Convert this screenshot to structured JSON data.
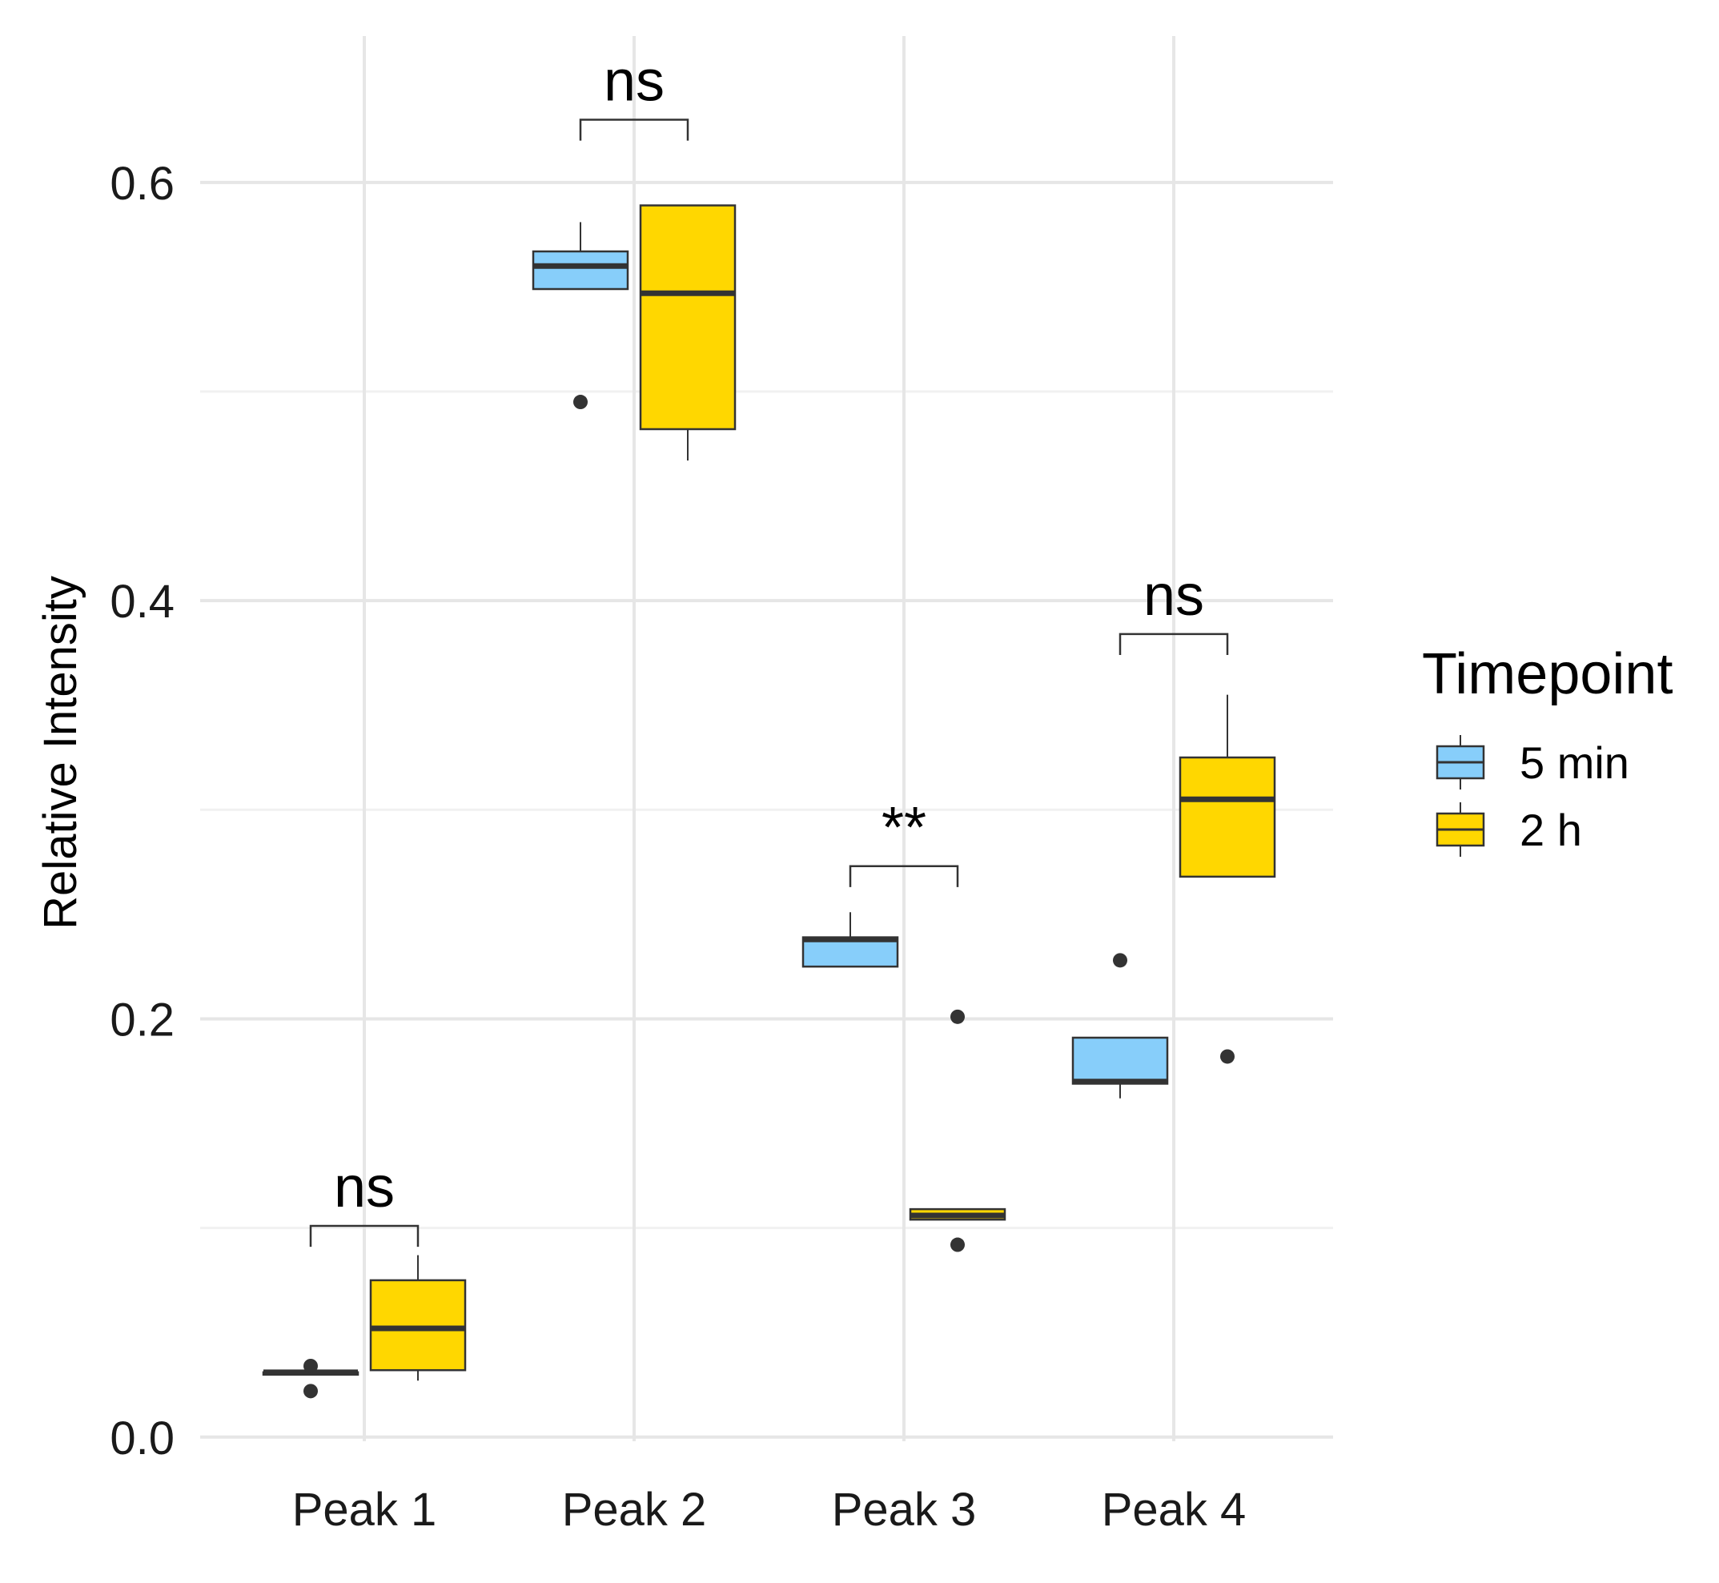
{
  "chart_data": {
    "type": "box",
    "ylabel": "Relative Intensity",
    "xlabel": "",
    "ylim": [
      -0.002,
      0.67
    ],
    "yticks": [
      0.0,
      0.2,
      0.4,
      0.6
    ],
    "ytick_labels": [
      "0.0",
      "0.2",
      "0.4",
      "0.6"
    ],
    "categories": [
      "Peak 1",
      "Peak 2",
      "Peak 3",
      "Peak 4"
    ],
    "grid": true,
    "legend": {
      "title": "Timepoint",
      "position": "right",
      "entries": [
        {
          "label": "5 min",
          "color": "#87CEFA"
        },
        {
          "label": "2 h",
          "color": "#FFD700"
        }
      ]
    },
    "series": [
      {
        "name": "5 min",
        "color": "#87CEFA",
        "boxes": [
          {
            "category": "Peak 1",
            "lower_whisker": 0.03,
            "q1": 0.03,
            "median": 0.031,
            "q3": 0.031,
            "upper_whisker": 0.032,
            "outliers": [
              0.034,
              0.022
            ]
          },
          {
            "category": "Peak 2",
            "lower_whisker": 0.549,
            "q1": 0.549,
            "median": 0.56,
            "q3": 0.567,
            "upper_whisker": 0.581,
            "outliers": [
              0.495
            ]
          },
          {
            "category": "Peak 3",
            "lower_whisker": 0.225,
            "q1": 0.225,
            "median": 0.238,
            "q3": 0.239,
            "upper_whisker": 0.251,
            "outliers": []
          },
          {
            "category": "Peak 4",
            "lower_whisker": 0.162,
            "q1": 0.169,
            "median": 0.17,
            "q3": 0.191,
            "upper_whisker": 0.191,
            "outliers": [
              0.228
            ]
          }
        ]
      },
      {
        "name": "2 h",
        "color": "#FFD700",
        "boxes": [
          {
            "category": "Peak 1",
            "lower_whisker": 0.027,
            "q1": 0.032,
            "median": 0.052,
            "q3": 0.075,
            "upper_whisker": 0.087,
            "outliers": []
          },
          {
            "category": "Peak 2",
            "lower_whisker": 0.467,
            "q1": 0.482,
            "median": 0.547,
            "q3": 0.589,
            "upper_whisker": 0.589,
            "outliers": []
          },
          {
            "category": "Peak 3",
            "lower_whisker": 0.104,
            "q1": 0.104,
            "median": 0.106,
            "q3": 0.109,
            "upper_whisker": 0.109,
            "outliers": [
              0.201,
              0.092
            ]
          },
          {
            "category": "Peak 4",
            "lower_whisker": 0.268,
            "q1": 0.268,
            "median": 0.305,
            "q3": 0.325,
            "upper_whisker": 0.355,
            "outliers": [
              0.182
            ]
          }
        ]
      }
    ],
    "annotations": [
      {
        "category": "Peak 1",
        "label": "ns",
        "bracket_y": 0.101,
        "tip_y": 0.091
      },
      {
        "category": "Peak 2",
        "label": "ns",
        "bracket_y": 0.63,
        "tip_y": 0.62
      },
      {
        "category": "Peak 3",
        "label": "**",
        "bracket_y": 0.273,
        "tip_y": 0.263
      },
      {
        "category": "Peak 4",
        "label": "ns",
        "bracket_y": 0.384,
        "tip_y": 0.374
      }
    ]
  }
}
